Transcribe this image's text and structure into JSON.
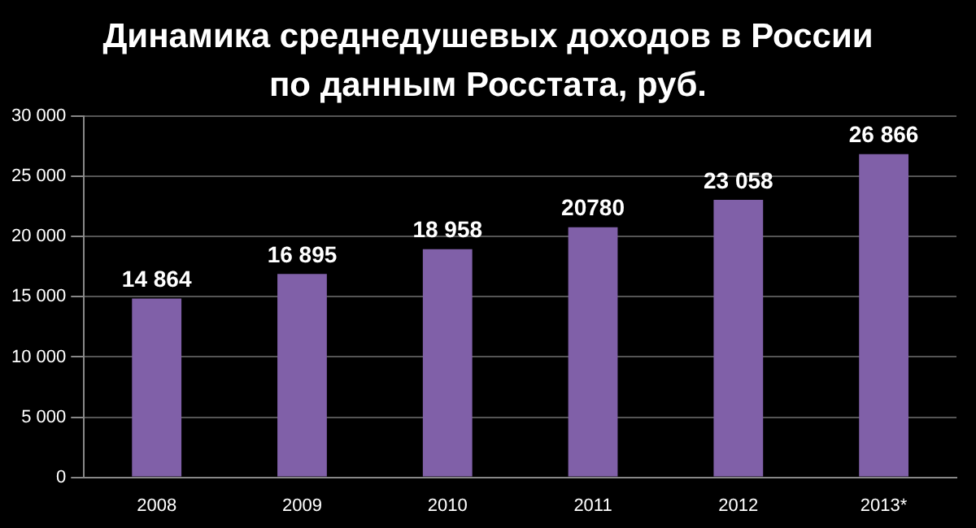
{
  "chart_data": {
    "type": "bar",
    "title": "Динамика среднедушевых доходов в России по данным Росстата, руб.",
    "categories": [
      "2008",
      "2009",
      "2010",
      "2011",
      "2012",
      "2013*"
    ],
    "values": [
      14864,
      16895,
      18958,
      20780,
      23058,
      26866
    ],
    "value_labels": [
      "14 864",
      "16 895",
      "18 958",
      "20780",
      "23 058",
      "26 866"
    ],
    "color": "#8060a8",
    "ylim": [
      0,
      30000
    ],
    "yticks": [
      0,
      {
        "value": 5000,
        "label": "5 000"
      },
      {
        "value": 10000,
        "label": "10 000"
      },
      {
        "value": 15000,
        "label": "15 000"
      },
      {
        "value": 20000,
        "label": "20 000"
      },
      {
        "value": 25000,
        "label": "25 000"
      },
      {
        "value": 30000,
        "label": "30 000"
      }
    ],
    "grid": "y"
  }
}
